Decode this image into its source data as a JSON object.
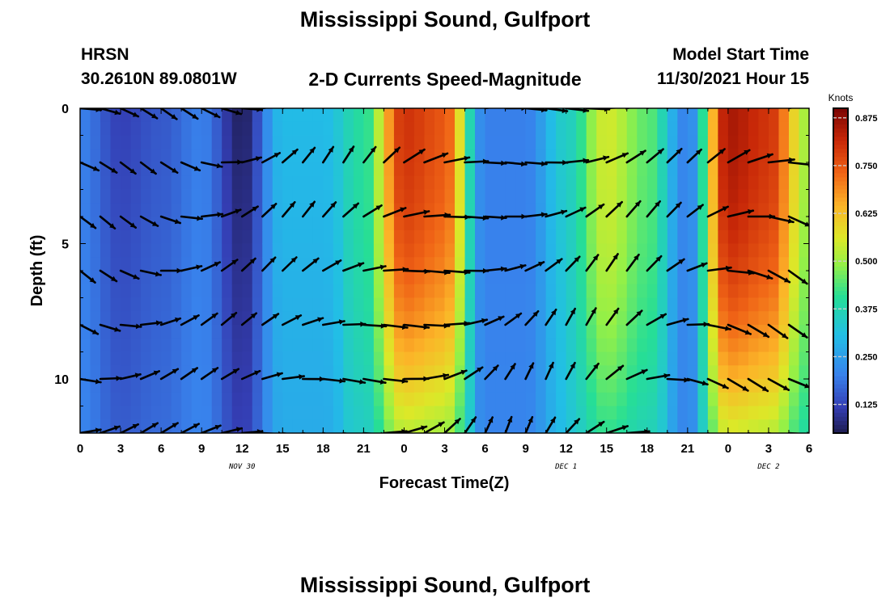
{
  "header": {
    "title": "Mississippi Sound, Gulfport",
    "station": "HRSN",
    "coords": "30.2610N  89.0801W",
    "subtitle": "2-D Currents Speed-Magnitude",
    "model_start_label": "Model Start Time",
    "model_start_value": "11/30/2021 Hour 15"
  },
  "footer": {
    "title_repeat": "Mississippi Sound, Gulfport"
  },
  "chart_data": {
    "type": "heatmap",
    "title": "2-D Currents Speed-Magnitude",
    "xlabel": "Forecast Time(Z)",
    "ylabel": "Depth (ft)",
    "xlim": [
      0,
      54
    ],
    "ylim": [
      0,
      12
    ],
    "x_ticks": [
      {
        "pos": 0,
        "label": "0"
      },
      {
        "pos": 3,
        "label": "3"
      },
      {
        "pos": 6,
        "label": "6"
      },
      {
        "pos": 9,
        "label": "9"
      },
      {
        "pos": 12,
        "label": "12"
      },
      {
        "pos": 15,
        "label": "15"
      },
      {
        "pos": 18,
        "label": "18"
      },
      {
        "pos": 21,
        "label": "21"
      },
      {
        "pos": 24,
        "label": "0"
      },
      {
        "pos": 27,
        "label": "3"
      },
      {
        "pos": 30,
        "label": "6"
      },
      {
        "pos": 33,
        "label": "9"
      },
      {
        "pos": 36,
        "label": "12"
      },
      {
        "pos": 39,
        "label": "15"
      },
      {
        "pos": 42,
        "label": "18"
      },
      {
        "pos": 45,
        "label": "21"
      },
      {
        "pos": 48,
        "label": "0"
      },
      {
        "pos": 51,
        "label": "3"
      },
      {
        "pos": 54,
        "label": "6"
      }
    ],
    "date_labels": [
      {
        "pos": 12,
        "label": "NOV 30"
      },
      {
        "pos": 36,
        "label": "DEC 1"
      },
      {
        "pos": 51,
        "label": "DEC 2"
      }
    ],
    "y_ticks": [
      {
        "pos": 0,
        "label": "0"
      },
      {
        "pos": 5,
        "label": "5"
      },
      {
        "pos": 10,
        "label": "10"
      }
    ],
    "colorbar": {
      "title": "Knots",
      "min": 0.05,
      "max": 0.9,
      "ticks": [
        "0.875",
        "0.750",
        "0.625",
        "0.500",
        "0.375",
        "0.250",
        "0.125"
      ]
    },
    "vector_depths": [
      0,
      2,
      4,
      6,
      8,
      10,
      12
    ],
    "vector_times": [
      0,
      1.5,
      3,
      4.5,
      6,
      7.5,
      9,
      10.5,
      12,
      13.5,
      15,
      16.5,
      18,
      19.5,
      21,
      22.5,
      24,
      25.5,
      27,
      28.5,
      30,
      31.5,
      33,
      34.5,
      36,
      37.5,
      39,
      40.5,
      42,
      43.5,
      45,
      46.5,
      48,
      49.5,
      51,
      52.5,
      54
    ],
    "speed_series": [
      {
        "time": 0,
        "knots": 0.2
      },
      {
        "time": 3,
        "knots": 0.12
      },
      {
        "time": 6,
        "knots": 0.15
      },
      {
        "time": 9,
        "knots": 0.2
      },
      {
        "time": 12,
        "knots": 0.06
      },
      {
        "time": 15,
        "knots": 0.3
      },
      {
        "time": 18,
        "knots": 0.3
      },
      {
        "time": 21,
        "knots": 0.4
      },
      {
        "time": 24,
        "knots": 0.8
      },
      {
        "time": 27,
        "knots": 0.75
      },
      {
        "time": 30,
        "knots": 0.2
      },
      {
        "time": 33,
        "knots": 0.2
      },
      {
        "time": 36,
        "knots": 0.35
      },
      {
        "time": 39,
        "knots": 0.55
      },
      {
        "time": 42,
        "knots": 0.45
      },
      {
        "time": 45,
        "knots": 0.2
      },
      {
        "time": 48,
        "knots": 0.85
      },
      {
        "time": 51,
        "knots": 0.8
      },
      {
        "time": 54,
        "knots": 0.5
      }
    ]
  }
}
